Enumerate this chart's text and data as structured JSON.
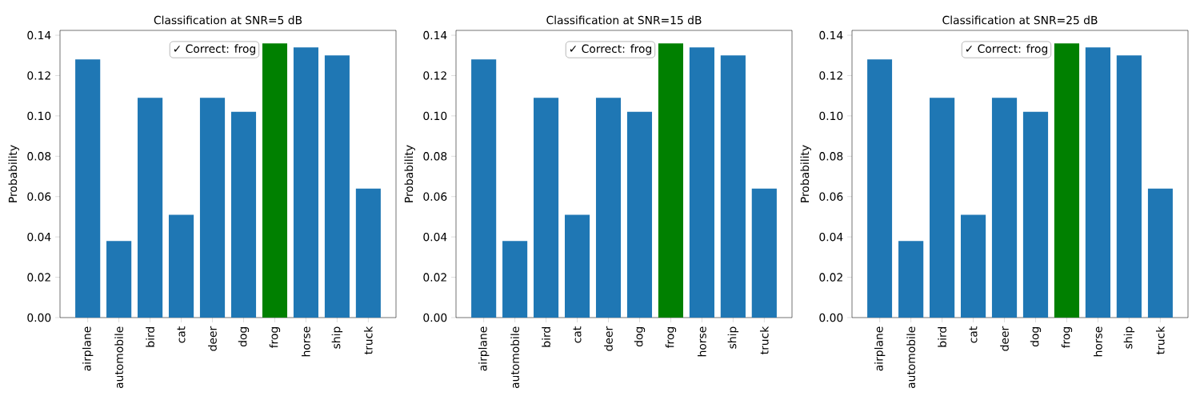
{
  "chart_data": [
    {
      "type": "bar",
      "title": "Classification at SNR=5 dB",
      "ylabel": "Probability",
      "categories": [
        "airplane",
        "automobile",
        "bird",
        "cat",
        "deer",
        "dog",
        "frog",
        "horse",
        "ship",
        "truck"
      ],
      "values": [
        0.128,
        0.038,
        0.109,
        0.051,
        0.109,
        0.102,
        0.136,
        0.134,
        0.13,
        0.064
      ],
      "colors": [
        "#1f77b4",
        "#1f77b4",
        "#1f77b4",
        "#1f77b4",
        "#1f77b4",
        "#1f77b4",
        "#008000",
        "#1f77b4",
        "#1f77b4",
        "#1f77b4"
      ],
      "ylim": [
        0,
        0.1424
      ],
      "yticks": [
        {
          "value": 0,
          "label": "0.00"
        },
        {
          "value": 0.02,
          "label": "0.02"
        },
        {
          "value": 0.04,
          "label": "0.04"
        },
        {
          "value": 0.06,
          "label": "0.06"
        },
        {
          "value": 0.08,
          "label": "0.08"
        },
        {
          "value": 0.1,
          "label": "0.10"
        },
        {
          "value": 0.12,
          "label": "0.12"
        },
        {
          "value": 0.14,
          "label": "0.14"
        }
      ],
      "annotations": [
        "✓ Correct: frog"
      ]
    },
    {
      "type": "bar",
      "title": "Classification at SNR=15 dB",
      "ylabel": "Probability",
      "categories": [
        "airplane",
        "automobile",
        "bird",
        "cat",
        "deer",
        "dog",
        "frog",
        "horse",
        "ship",
        "truck"
      ],
      "values": [
        0.128,
        0.038,
        0.109,
        0.051,
        0.109,
        0.102,
        0.136,
        0.134,
        0.13,
        0.064
      ],
      "colors": [
        "#1f77b4",
        "#1f77b4",
        "#1f77b4",
        "#1f77b4",
        "#1f77b4",
        "#1f77b4",
        "#008000",
        "#1f77b4",
        "#1f77b4",
        "#1f77b4"
      ],
      "ylim": [
        0,
        0.1424
      ],
      "yticks": [
        {
          "value": 0,
          "label": "0.00"
        },
        {
          "value": 0.02,
          "label": "0.02"
        },
        {
          "value": 0.04,
          "label": "0.04"
        },
        {
          "value": 0.06,
          "label": "0.06"
        },
        {
          "value": 0.08,
          "label": "0.08"
        },
        {
          "value": 0.1,
          "label": "0.10"
        },
        {
          "value": 0.12,
          "label": "0.12"
        },
        {
          "value": 0.14,
          "label": "0.14"
        }
      ],
      "annotations": [
        "✓ Correct: frog"
      ]
    },
    {
      "type": "bar",
      "title": "Classification at SNR=25 dB",
      "ylabel": "Probability",
      "categories": [
        "airplane",
        "automobile",
        "bird",
        "cat",
        "deer",
        "dog",
        "frog",
        "horse",
        "ship",
        "truck"
      ],
      "values": [
        0.128,
        0.038,
        0.109,
        0.051,
        0.109,
        0.102,
        0.136,
        0.134,
        0.13,
        0.064
      ],
      "colors": [
        "#1f77b4",
        "#1f77b4",
        "#1f77b4",
        "#1f77b4",
        "#1f77b4",
        "#1f77b4",
        "#008000",
        "#1f77b4",
        "#1f77b4",
        "#1f77b4"
      ],
      "ylim": [
        0,
        0.1424
      ],
      "yticks": [
        {
          "value": 0,
          "label": "0.00"
        },
        {
          "value": 0.02,
          "label": "0.02"
        },
        {
          "value": 0.04,
          "label": "0.04"
        },
        {
          "value": 0.06,
          "label": "0.06"
        },
        {
          "value": 0.08,
          "label": "0.08"
        },
        {
          "value": 0.1,
          "label": "0.10"
        },
        {
          "value": 0.12,
          "label": "0.12"
        },
        {
          "value": 0.14,
          "label": "0.14"
        }
      ],
      "annotations": [
        "✓ Correct: frog"
      ]
    }
  ]
}
